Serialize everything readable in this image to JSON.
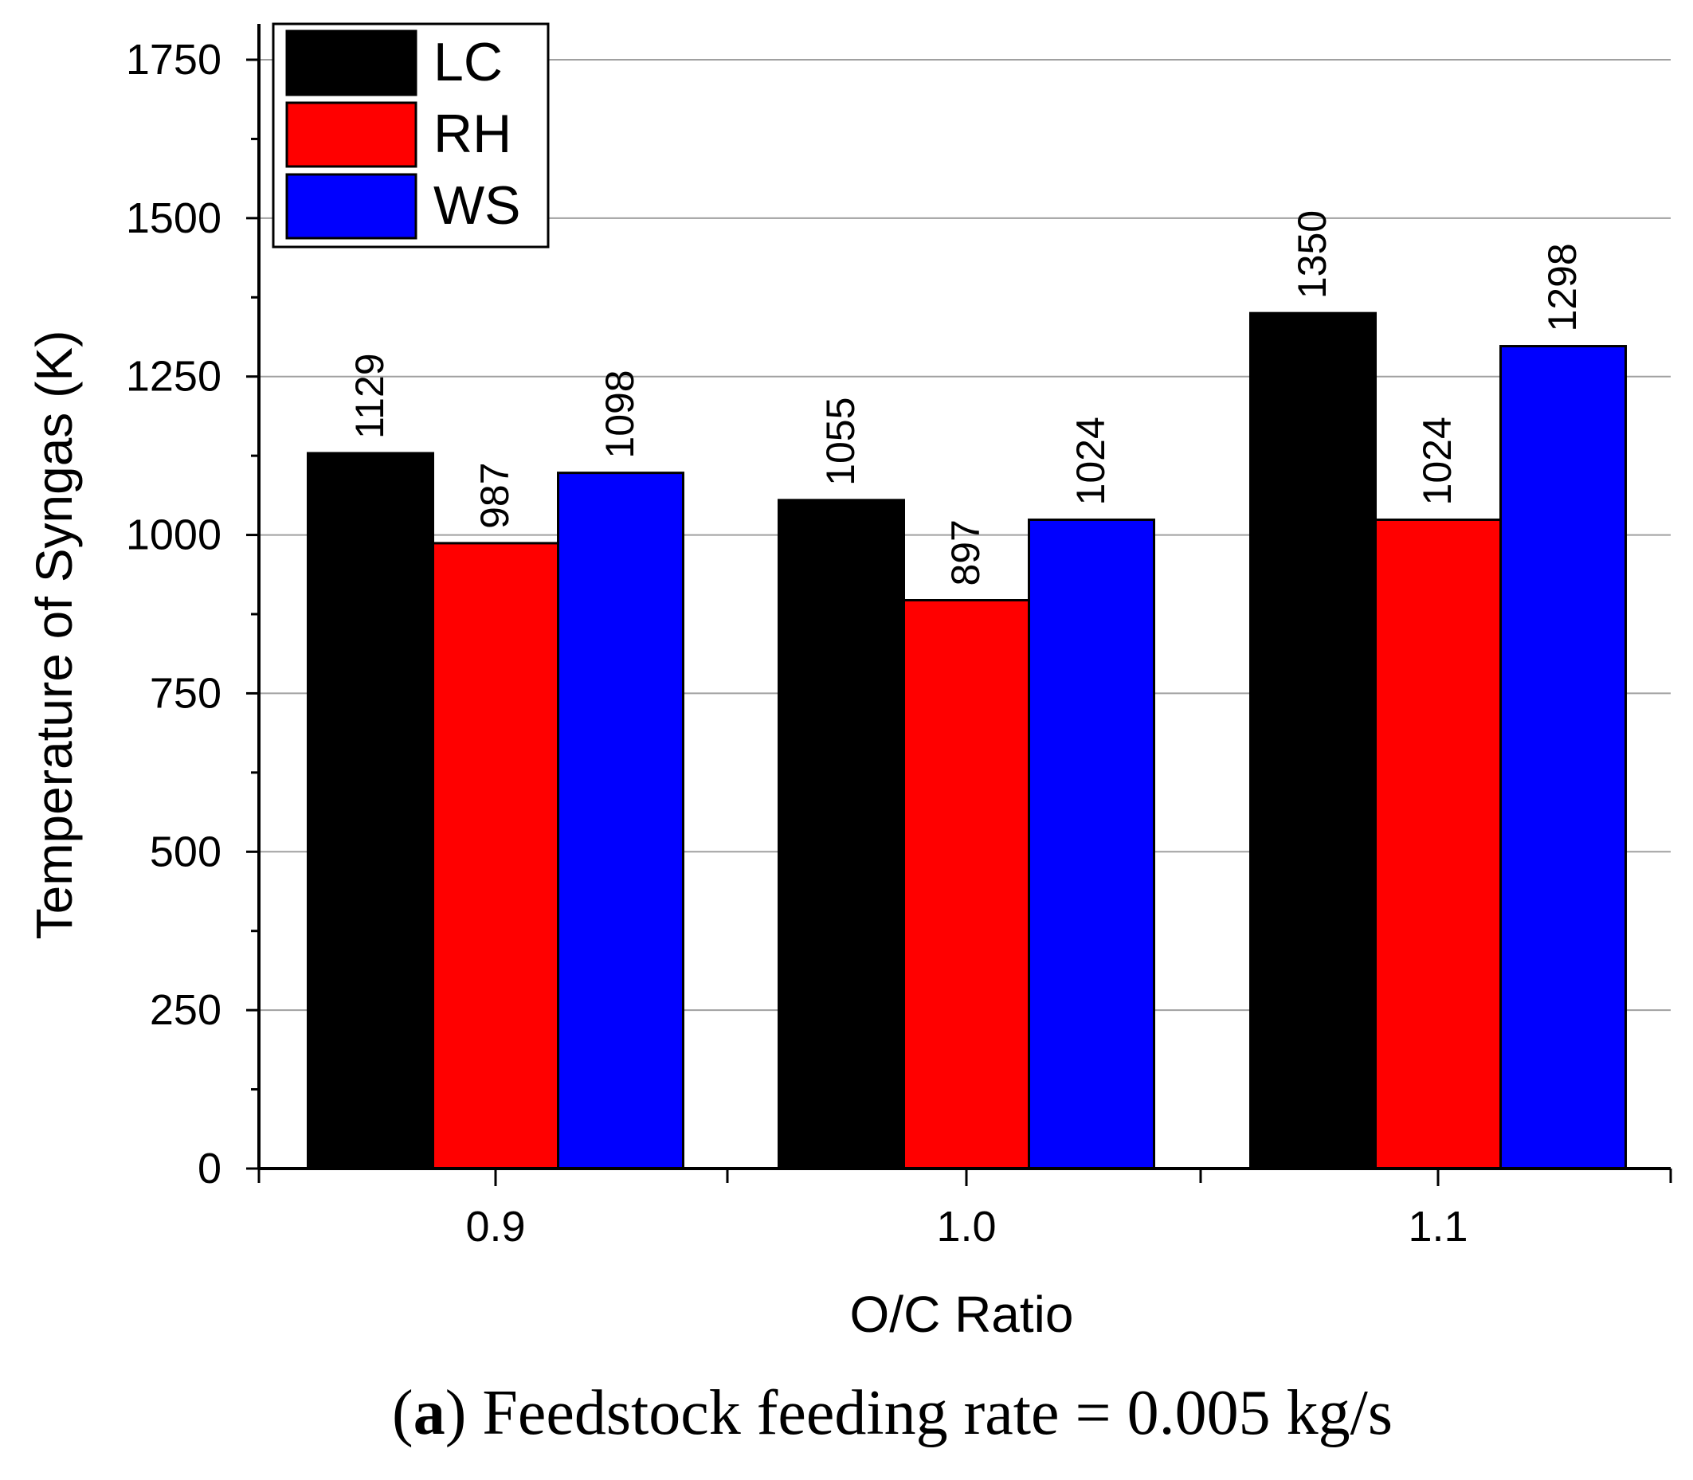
{
  "chart_data": {
    "type": "bar",
    "title": "",
    "xlabel": "O/C Ratio",
    "ylabel": "Temperature of Syngas (K)",
    "categories": [
      "0.9",
      "1.0",
      "1.1"
    ],
    "series": [
      {
        "name": "LC",
        "color": "#000000",
        "values": [
          1129,
          1055,
          1350
        ]
      },
      {
        "name": "RH",
        "color": "#ff0000",
        "values": [
          987,
          897,
          1024
        ]
      },
      {
        "name": "WS",
        "color": "#0000ff",
        "values": [
          1098,
          1024,
          1298
        ]
      }
    ],
    "ylim": [
      0,
      1750
    ],
    "yticks": [
      0,
      250,
      500,
      750,
      1000,
      1250,
      1500,
      1750
    ],
    "grid": true,
    "legend_position": "top-left",
    "caption_label": "a",
    "caption_text": "Feedstock feeding rate = 0.005 kg/s"
  }
}
